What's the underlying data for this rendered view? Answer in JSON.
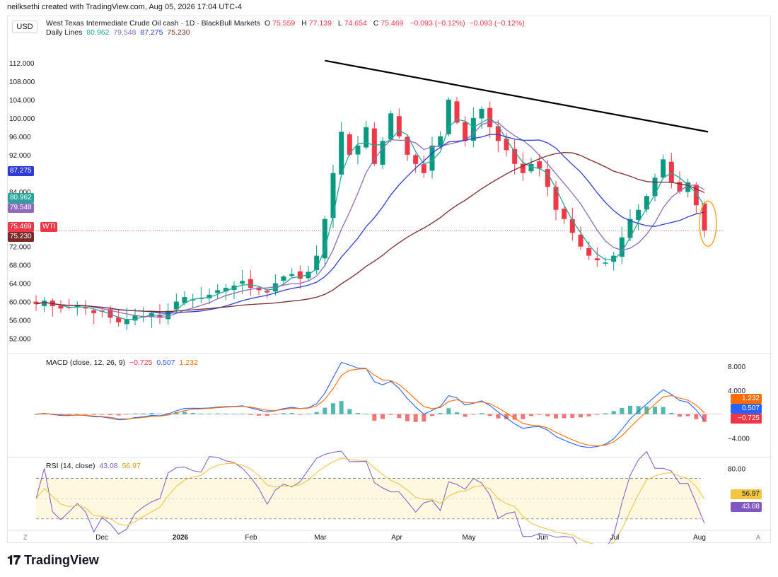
{
  "header": {
    "credit": "neilksethi created with TradingView.com, Aug 05, 2026 17:04 UTC-4",
    "currency": "USD",
    "symbol_title": "West Texas Intermediate Crude Oil cash · 1D · BlackBull Markets",
    "ohlc": {
      "o_label": "O",
      "o": "75.559",
      "h_label": "H",
      "h": "77.139",
      "l_label": "L",
      "l": "74.654",
      "c_label": "C",
      "c": "75.469",
      "chg": "−0.093 (−0.12%)",
      "chg2": "−0.093 (−0.12%)"
    },
    "ma_legend": {
      "label": "Daily Lines",
      "v1": "80.962",
      "v2": "79.548",
      "v3": "87.275",
      "v4": "75.230"
    }
  },
  "colors": {
    "up": "#089981",
    "down": "#f23645",
    "ma20": "#26a69a",
    "ma50": "#8e6bbf",
    "ma100": "#2c3bd6",
    "ma200": "#7b2a2a",
    "trend": "#000000",
    "macd": "#2962ff",
    "signal": "#ff6d00",
    "rsi": "#7e57c2",
    "rsi_ma": "#f5c542",
    "circle": "#f5a623"
  },
  "price_tags": {
    "ma100": "87.275",
    "ma20": "80.962",
    "ma50": "79.548",
    "last": "75.469",
    "last_label": "WTI",
    "ma200": "75.230"
  },
  "macd_legend": {
    "label": "MACD (close, 12, 26, 9)",
    "hist": "−0.725",
    "macd": "0.507",
    "signal": "1.232"
  },
  "macd_tags": {
    "signal": "1.232",
    "macd": "0.507",
    "hist": "−0.725"
  },
  "rsi_legend": {
    "label": "RSI (14, close)",
    "rsi": "43.08",
    "ma": "56.97"
  },
  "rsi_tags": {
    "ma": "56.97",
    "rsi": "43.08"
  },
  "footer": {
    "brand": "TradingView",
    "z_label": "Z",
    "a_label": "A"
  },
  "chart_data": [
    {
      "type": "candlestick",
      "title": "West Texas Intermediate Crude Oil cash · 1D · BlackBull Markets",
      "x_labels": [
        "Dec",
        "2026",
        "Feb",
        "Mar",
        "Apr",
        "May",
        "Jun",
        "Jul",
        "Aug"
      ],
      "y_ticks": [
        52,
        56,
        60,
        64,
        68,
        72,
        76,
        80,
        84,
        88,
        92,
        96,
        100,
        104,
        108,
        112
      ],
      "y_tick_labels": [
        "52.000",
        "56.000",
        "60.000",
        "64.000",
        "68.000",
        "72.000",
        "76.000",
        "80.000",
        "84.000",
        "88.000",
        "92.000",
        "96.000",
        "100.000",
        "104.000",
        "108.000",
        "112.000"
      ],
      "ylim": [
        49,
        116
      ],
      "approx_close_path": [
        59.5,
        60.2,
        59.0,
        58.5,
        58.8,
        59.2,
        58.5,
        57.5,
        57.8,
        56.5,
        55.5,
        56.2,
        57.0,
        56.8,
        57.5,
        56.5,
        58.0,
        60.0,
        61.0,
        60.5,
        60.8,
        61.5,
        62.5,
        63.0,
        63.5,
        64.5,
        63.0,
        62.5,
        62.0,
        64.0,
        65.5,
        66.0,
        65.0,
        66.5,
        70.0,
        78.0,
        88.0,
        97.0,
        92.0,
        94.0,
        98.0,
        90.0,
        95.0,
        101.0,
        96.0,
        92.0,
        90.0,
        88.0,
        94.0,
        96.0,
        104.0,
        99.0,
        95.0,
        100.0,
        102.0,
        98.0,
        95.0,
        93.0,
        90.0,
        88.0,
        90.0,
        89.0,
        85.0,
        80.0,
        78.0,
        75.0,
        72.0,
        70.0,
        69.0,
        68.5,
        70.0,
        74.0,
        78.0,
        80.0,
        83.0,
        87.0,
        91.0,
        86.0,
        84.0,
        86.0,
        81.0,
        75.5
      ],
      "moving_averages": [
        {
          "name": "MA20",
          "last": 80.962
        },
        {
          "name": "MA50",
          "last": 79.548
        },
        {
          "name": "MA100",
          "last": 87.275
        },
        {
          "name": "MA200",
          "last": 75.23
        }
      ],
      "last_price": 75.469,
      "trendline": {
        "from_price": 112.5,
        "to_price": 97.0
      }
    },
    {
      "type": "bar",
      "title": "MACD (close, 12, 26, 9)",
      "y_ticks": [
        -4,
        4,
        8
      ],
      "y_tick_labels": [
        "−4.000",
        "4.000",
        "8.000"
      ],
      "ylim": [
        -7,
        10
      ],
      "last": {
        "hist": -0.725,
        "macd": 0.507,
        "signal": 1.232
      }
    },
    {
      "type": "line",
      "title": "RSI (14, close)",
      "y_ticks": [
        80
      ],
      "y_tick_labels": [
        "80.00"
      ],
      "bands": [
        70,
        30
      ],
      "ylim": [
        20,
        90
      ],
      "last": {
        "rsi": 43.08,
        "ma": 56.97
      }
    }
  ]
}
